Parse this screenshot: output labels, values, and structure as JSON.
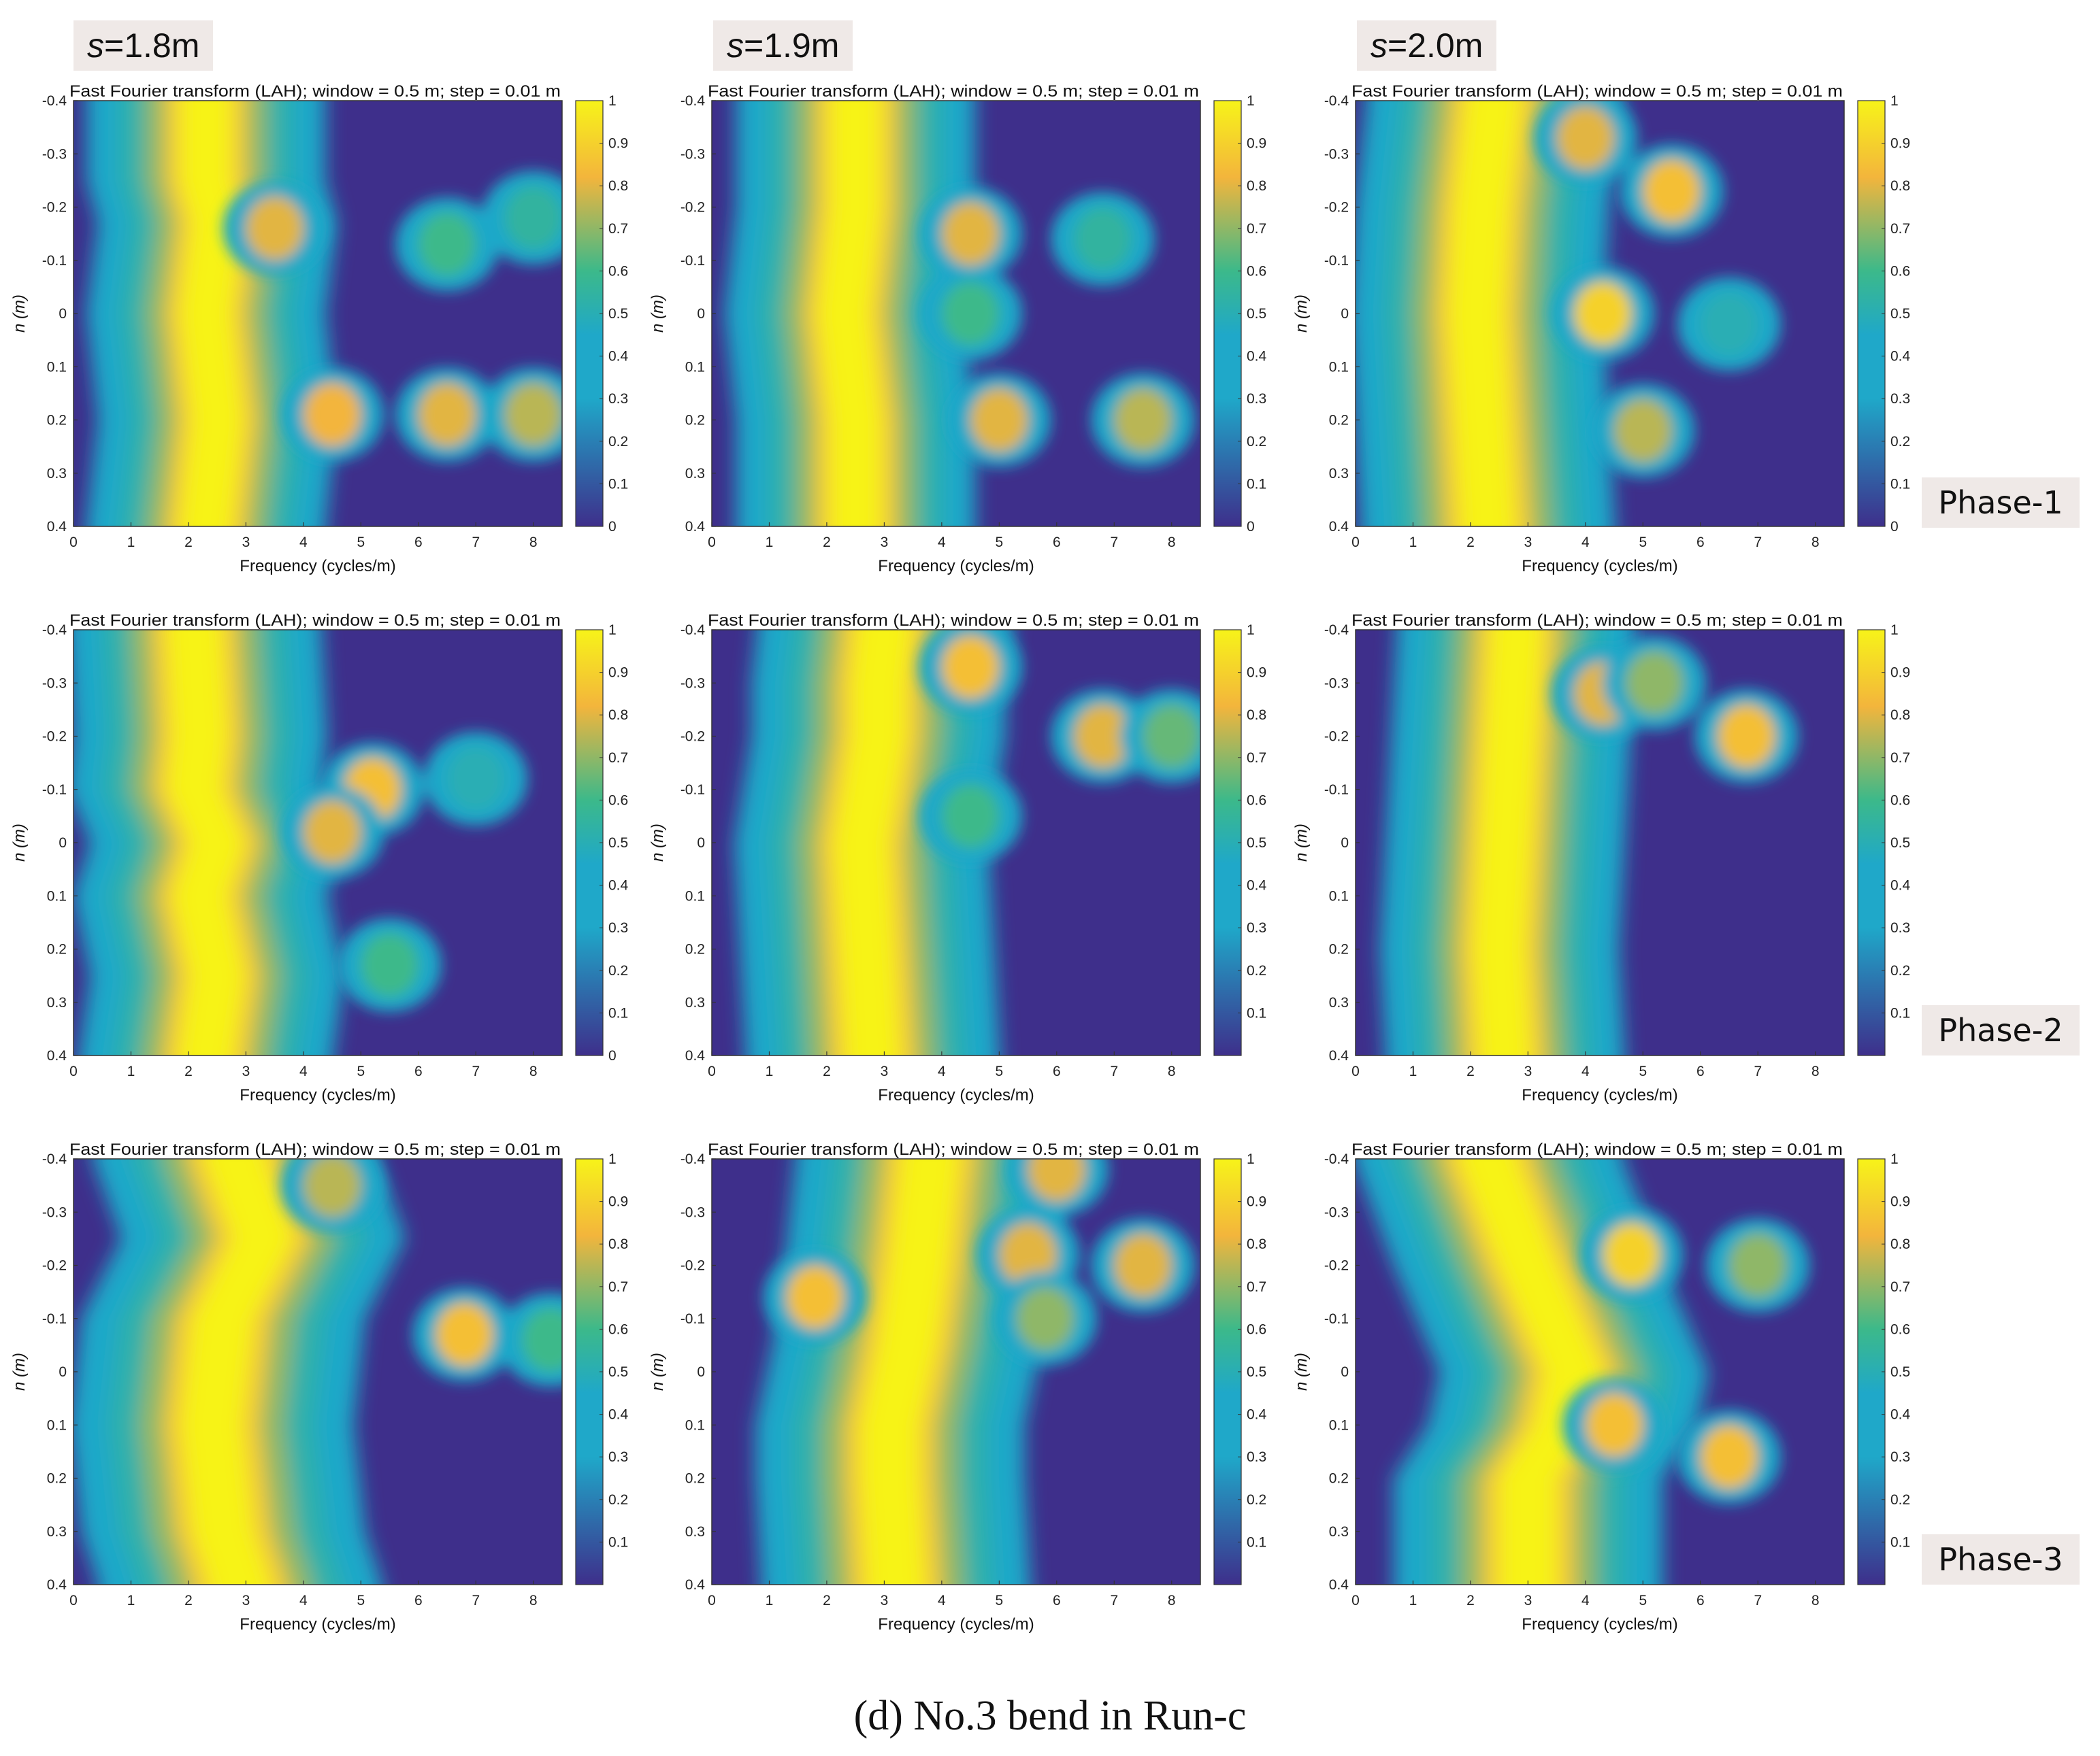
{
  "caption": "(d) No.3 bend in Run-c",
  "colors": {
    "low": "#3e2f8b",
    "mid": "#1fa8c9",
    "green": "#3cb98a",
    "orange": "#f3b53c",
    "high": "#f7f319"
  },
  "column_labels": [
    {
      "var": "s",
      "value": "=1.8m"
    },
    {
      "var": "s",
      "value": "=1.9m"
    },
    {
      "var": "s",
      "value": "=2.0m"
    }
  ],
  "row_labels": [
    "Phase-1",
    "Phase-2",
    "Phase-3"
  ],
  "chart_data": {
    "type": "heatmap",
    "title": "Fast Fourier transform (LAH); window = 0.5 m; step = 0.01 m",
    "xlabel": "Frequency (cycles/m)",
    "ylabel": "n (m)",
    "xlim": [
      0,
      8.5
    ],
    "ylim": [
      -0.4,
      0.4
    ],
    "x_ticks": [
      "0",
      "1",
      "2",
      "3",
      "4",
      "5",
      "6",
      "7",
      "8"
    ],
    "y_ticks": [
      "-0.4",
      "-0.3",
      "-0.2",
      "-0.1",
      "0",
      "0.1",
      "0.2",
      "0.3",
      "0.4"
    ],
    "colorbar": {
      "range": [
        0,
        1
      ],
      "ticks_full": [
        "0",
        "0.1",
        "0.2",
        "0.3",
        "0.4",
        "0.5",
        "0.6",
        "0.7",
        "0.8",
        "0.9",
        "1"
      ],
      "ticks_nozero": [
        "0.1",
        "0.2",
        "0.3",
        "0.4",
        "0.5",
        "0.6",
        "0.7",
        "0.8",
        "0.9",
        "1"
      ]
    },
    "grid": false,
    "panels": [
      {
        "row": 0,
        "col": 0,
        "cb_zero": true,
        "band": [
          [
            -0.4,
            2.3
          ],
          [
            -0.25,
            2.3
          ],
          [
            -0.17,
            2.5
          ],
          [
            0,
            2.3
          ],
          [
            0.2,
            2.5
          ],
          [
            0.4,
            2.3
          ]
        ],
        "half_width": 0.8,
        "spots": [
          {
            "x": 3.5,
            "y": -0.16,
            "v": 0.8
          },
          {
            "x": 4.5,
            "y": 0.19,
            "v": 0.82
          },
          {
            "x": 6.5,
            "y": 0.19,
            "v": 0.8
          },
          {
            "x": 8.0,
            "y": 0.19,
            "v": 0.75
          },
          {
            "x": 6.5,
            "y": -0.13,
            "v": 0.6
          },
          {
            "x": 8.0,
            "y": -0.18,
            "v": 0.55
          }
        ]
      },
      {
        "row": 0,
        "col": 1,
        "cb_zero": true,
        "band": [
          [
            -0.4,
            2.5
          ],
          [
            -0.2,
            2.5
          ],
          [
            0,
            2.3
          ],
          [
            0.2,
            2.5
          ],
          [
            0.4,
            2.5
          ]
        ],
        "half_width": 0.8,
        "spots": [
          {
            "x": 4.5,
            "y": -0.15,
            "v": 0.8
          },
          {
            "x": 4.5,
            "y": 0.0,
            "v": 0.6
          },
          {
            "x": 6.8,
            "y": -0.14,
            "v": 0.55
          },
          {
            "x": 5.0,
            "y": 0.2,
            "v": 0.8
          },
          {
            "x": 7.5,
            "y": 0.2,
            "v": 0.75
          }
        ]
      },
      {
        "row": 0,
        "col": 2,
        "cb_zero": true,
        "band": [
          [
            -0.4,
            2.4
          ],
          [
            -0.2,
            2.2
          ],
          [
            0,
            2.1
          ],
          [
            0.2,
            2.2
          ],
          [
            0.4,
            2.3
          ]
        ],
        "half_width": 0.85,
        "spots": [
          {
            "x": 4.3,
            "y": 0.0,
            "v": 0.9
          },
          {
            "x": 5.5,
            "y": -0.23,
            "v": 0.85
          },
          {
            "x": 4.0,
            "y": -0.33,
            "v": 0.8
          },
          {
            "x": 5.0,
            "y": 0.22,
            "v": 0.75
          },
          {
            "x": 6.5,
            "y": 0.02,
            "v": 0.5
          }
        ]
      },
      {
        "row": 1,
        "col": 0,
        "cb_zero": true,
        "band": [
          [
            -0.4,
            2.1
          ],
          [
            -0.2,
            2.2
          ],
          [
            -0.1,
            2.1
          ],
          [
            0,
            2.5
          ],
          [
            0.1,
            2.2
          ],
          [
            0.25,
            2.5
          ],
          [
            0.4,
            2.3
          ]
        ],
        "half_width": 0.85,
        "spots": [
          {
            "x": 5.2,
            "y": -0.1,
            "v": 0.85
          },
          {
            "x": 4.5,
            "y": -0.02,
            "v": 0.8
          },
          {
            "x": 7.0,
            "y": -0.12,
            "v": 0.5
          },
          {
            "x": 5.5,
            "y": 0.23,
            "v": 0.6
          }
        ]
      },
      {
        "row": 1,
        "col": 1,
        "cb_zero": false,
        "band": [
          [
            -0.4,
            3.0
          ],
          [
            -0.3,
            2.9
          ],
          [
            -0.2,
            2.9
          ],
          [
            0,
            2.6
          ],
          [
            0.2,
            2.7
          ],
          [
            0.4,
            2.8
          ]
        ],
        "half_width": 0.85,
        "spots": [
          {
            "x": 4.5,
            "y": -0.33,
            "v": 0.85
          },
          {
            "x": 4.5,
            "y": -0.05,
            "v": 0.6
          },
          {
            "x": 6.8,
            "y": -0.2,
            "v": 0.8
          },
          {
            "x": 8.0,
            "y": -0.2,
            "v": 0.65
          }
        ]
      },
      {
        "row": 1,
        "col": 2,
        "cb_zero": false,
        "band": [
          [
            -0.4,
            2.8
          ],
          [
            -0.2,
            2.7
          ],
          [
            0,
            2.6
          ],
          [
            0.2,
            2.5
          ],
          [
            0.4,
            2.6
          ]
        ],
        "half_width": 0.8,
        "spots": [
          {
            "x": 4.3,
            "y": -0.28,
            "v": 0.8
          },
          {
            "x": 6.8,
            "y": -0.2,
            "v": 0.85
          },
          {
            "x": 5.2,
            "y": -0.3,
            "v": 0.7
          }
        ]
      },
      {
        "row": 2,
        "col": 0,
        "cb_zero": false,
        "band": [
          [
            -0.4,
            2.8
          ],
          [
            -0.25,
            3.3
          ],
          [
            -0.1,
            2.6
          ],
          [
            0.1,
            2.4
          ],
          [
            0.3,
            2.6
          ],
          [
            0.4,
            2.9
          ]
        ],
        "half_width": 0.95,
        "spots": [
          {
            "x": 6.8,
            "y": -0.07,
            "v": 0.85
          },
          {
            "x": 4.5,
            "y": -0.35,
            "v": 0.75
          },
          {
            "x": 8.3,
            "y": -0.06,
            "v": 0.6
          }
        ]
      },
      {
        "row": 2,
        "col": 1,
        "cb_zero": false,
        "band": [
          [
            -0.4,
            3.8
          ],
          [
            -0.2,
            3.6
          ],
          [
            -0.05,
            3.4
          ],
          [
            0.1,
            3.1
          ],
          [
            0.2,
            3.1
          ],
          [
            0.4,
            3.2
          ]
        ],
        "half_width": 0.9,
        "spots": [
          {
            "x": 1.8,
            "y": -0.14,
            "v": 0.85
          },
          {
            "x": 5.5,
            "y": -0.22,
            "v": 0.8
          },
          {
            "x": 7.5,
            "y": -0.2,
            "v": 0.8
          },
          {
            "x": 6.0,
            "y": -0.38,
            "v": 0.8
          },
          {
            "x": 5.8,
            "y": -0.1,
            "v": 0.7
          }
        ]
      },
      {
        "row": 2,
        "col": 2,
        "cb_zero": false,
        "band": [
          [
            -0.4,
            2.3
          ],
          [
            -0.2,
            3.0
          ],
          [
            0,
            3.8
          ],
          [
            0.1,
            3.6
          ],
          [
            0.2,
            3.0
          ],
          [
            0.4,
            3.0
          ]
        ],
        "half_width": 0.9,
        "spots": [
          {
            "x": 4.8,
            "y": -0.22,
            "v": 0.9
          },
          {
            "x": 4.5,
            "y": 0.1,
            "v": 0.85
          },
          {
            "x": 6.5,
            "y": 0.16,
            "v": 0.85
          },
          {
            "x": 7.0,
            "y": -0.2,
            "v": 0.7
          }
        ]
      }
    ]
  }
}
